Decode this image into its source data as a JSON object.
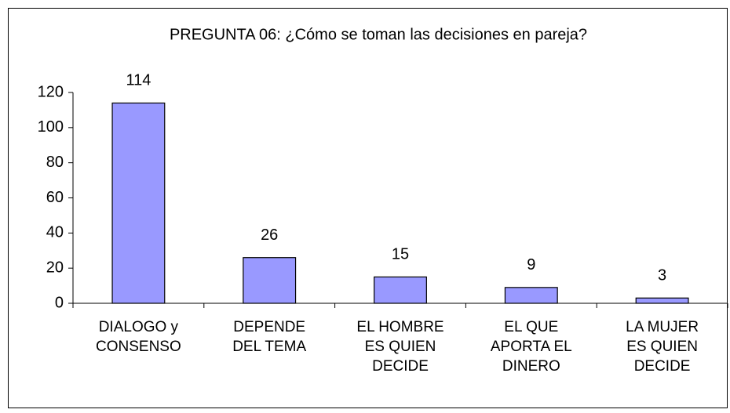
{
  "chart_data": {
    "type": "bar",
    "title": "PREGUNTA 06: ¿Cómo se toman las decisiones en pareja?",
    "categories": [
      "DIALOGO y CONSENSO",
      "DEPENDE DEL TEMA",
      "EL HOMBRE ES QUIEN DECIDE",
      "EL QUE APORTA EL DINERO",
      "LA MUJER ES QUIEN DECIDE"
    ],
    "values": [
      114,
      26,
      15,
      9,
      3
    ],
    "color": "#9999ff",
    "ylim": [
      0,
      120
    ],
    "yticks": [
      0,
      20,
      40,
      60,
      80,
      100,
      120
    ],
    "grid": false
  }
}
